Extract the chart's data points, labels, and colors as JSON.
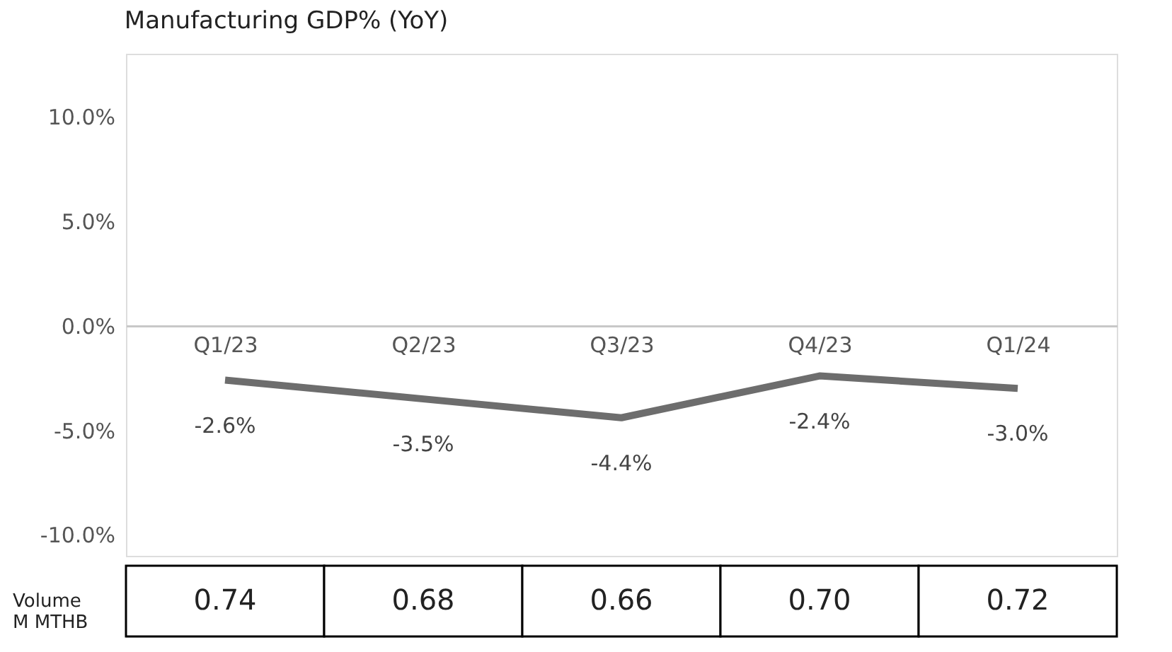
{
  "chart_data": {
    "type": "line",
    "title": "Manufacturing GDP% (YoY)",
    "categories": [
      "Q1/23",
      "Q2/23",
      "Q3/23",
      "Q4/23",
      "Q1/24"
    ],
    "series": [
      {
        "color": "#6d6d6d",
        "values": [
          -2.6,
          -3.5,
          -4.4,
          -2.4,
          -3.0
        ],
        "value_labels": [
          "-2.6%",
          "-3.5%",
          "-4.4%",
          "-2.4%",
          "-3.0%"
        ]
      }
    ],
    "ylim": [
      -11,
      13
    ],
    "yticks": [
      {
        "value": 10,
        "label": "10.0%"
      },
      {
        "value": 5,
        "label": "5.0%"
      },
      {
        "value": 0,
        "label": "0.0%"
      },
      {
        "value": -5,
        "label": "-5.0%"
      },
      {
        "value": -10,
        "label": "-10.0%"
      }
    ],
    "grid": false,
    "marker": "none",
    "line_style": "solid",
    "annotations": [
      "Volume\nM MTHB",
      "0.74",
      "0.68",
      "0.66",
      "0.70",
      "0.72"
    ]
  }
}
